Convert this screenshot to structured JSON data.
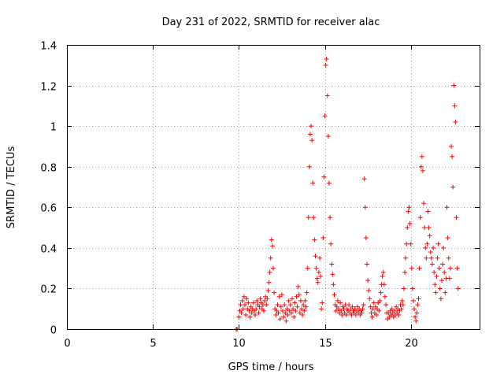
{
  "chart_data": {
    "type": "scatter",
    "title": "Day 231 of 2022, SRMTID for receiver alac",
    "xlabel": "GPS time / hours",
    "ylabel": "SRMTID / TECUs",
    "xlim": [
      0,
      24
    ],
    "ylim": [
      0,
      1.4
    ],
    "xticks": [
      0,
      5,
      10,
      15,
      20
    ],
    "xtick_labels": [
      "0",
      "5",
      "10",
      "15",
      "20"
    ],
    "yticks": [
      0,
      0.2,
      0.4,
      0.6,
      0.8,
      1.0,
      1.2,
      1.4
    ],
    "ytick_labels": [
      "0",
      "0.2",
      "0.4",
      "0.6",
      "0.8",
      "1",
      "1.2",
      "1.4"
    ],
    "grid": true,
    "marker": "+",
    "color": "#ff0000",
    "series": [
      {
        "name": "SRMTID",
        "points": [
          [
            9.85,
            0.0
          ],
          [
            9.9,
            0.0
          ],
          [
            10.0,
            0.06
          ],
          [
            10.05,
            0.09
          ],
          [
            10.1,
            0.12
          ],
          [
            10.15,
            0.08
          ],
          [
            10.2,
            0.14
          ],
          [
            10.25,
            0.1
          ],
          [
            10.3,
            0.16
          ],
          [
            10.35,
            0.12
          ],
          [
            10.4,
            0.07
          ],
          [
            10.45,
            0.15
          ],
          [
            10.5,
            0.1
          ],
          [
            10.55,
            0.13
          ],
          [
            10.6,
            0.09
          ],
          [
            10.65,
            0.06
          ],
          [
            10.7,
            0.11
          ],
          [
            10.75,
            0.08
          ],
          [
            10.8,
            0.1
          ],
          [
            10.85,
            0.13
          ],
          [
            10.9,
            0.09
          ],
          [
            10.95,
            0.07
          ],
          [
            11.0,
            0.1
          ],
          [
            11.05,
            0.14
          ],
          [
            11.1,
            0.12
          ],
          [
            11.15,
            0.08
          ],
          [
            11.2,
            0.11
          ],
          [
            11.25,
            0.15
          ],
          [
            11.3,
            0.13
          ],
          [
            11.35,
            0.1
          ],
          [
            11.4,
            0.12
          ],
          [
            11.45,
            0.09
          ],
          [
            11.5,
            0.14
          ],
          [
            11.55,
            0.16
          ],
          [
            11.6,
            0.12
          ],
          [
            11.65,
            0.15
          ],
          [
            11.7,
            0.19
          ],
          [
            11.75,
            0.23
          ],
          [
            11.8,
            0.28
          ],
          [
            11.85,
            0.35
          ],
          [
            11.9,
            0.44
          ],
          [
            11.95,
            0.41
          ],
          [
            12.0,
            0.3
          ],
          [
            12.05,
            0.18
          ],
          [
            12.1,
            0.1
          ],
          [
            12.15,
            0.07
          ],
          [
            12.2,
            0.09
          ],
          [
            12.25,
            0.12
          ],
          [
            12.3,
            0.08
          ],
          [
            12.35,
            0.16
          ],
          [
            12.4,
            0.05
          ],
          [
            12.45,
            0.11
          ],
          [
            12.5,
            0.17
          ],
          [
            12.55,
            0.09
          ],
          [
            12.6,
            0.06
          ],
          [
            12.65,
            0.12
          ],
          [
            12.7,
            0.08
          ],
          [
            12.75,
            0.04
          ],
          [
            12.8,
            0.1
          ],
          [
            12.85,
            0.07
          ],
          [
            12.9,
            0.14
          ],
          [
            12.95,
            0.09
          ],
          [
            13.0,
            0.12
          ],
          [
            13.05,
            0.08
          ],
          [
            13.1,
            0.15
          ],
          [
            13.15,
            0.1
          ],
          [
            13.2,
            0.06
          ],
          [
            13.25,
            0.13
          ],
          [
            13.3,
            0.09
          ],
          [
            13.35,
            0.16
          ],
          [
            13.4,
            0.11
          ],
          [
            13.45,
            0.21
          ],
          [
            13.5,
            0.17
          ],
          [
            13.55,
            0.08
          ],
          [
            13.6,
            0.14
          ],
          [
            13.65,
            0.1
          ],
          [
            13.7,
            0.07
          ],
          [
            13.75,
            0.12
          ],
          [
            13.8,
            0.09
          ],
          [
            13.85,
            0.14
          ],
          [
            13.9,
            0.11
          ],
          [
            13.95,
            0.18
          ],
          [
            14.0,
            0.3
          ],
          [
            14.05,
            0.55
          ],
          [
            14.1,
            0.8
          ],
          [
            14.15,
            0.96
          ],
          [
            14.2,
            1.0
          ],
          [
            14.25,
            0.93
          ],
          [
            14.3,
            0.72
          ],
          [
            14.35,
            0.55
          ],
          [
            14.4,
            0.44
          ],
          [
            14.45,
            0.36
          ],
          [
            14.5,
            0.3
          ],
          [
            14.55,
            0.25
          ],
          [
            14.6,
            0.23
          ],
          [
            14.65,
            0.28
          ],
          [
            14.7,
            0.35
          ],
          [
            14.75,
            0.26
          ],
          [
            14.8,
            0.1
          ],
          [
            14.85,
            0.13
          ],
          [
            14.9,
            0.45
          ],
          [
            14.95,
            0.75
          ],
          [
            15.0,
            1.05
          ],
          [
            15.05,
            1.3
          ],
          [
            15.1,
            1.33
          ],
          [
            15.15,
            1.15
          ],
          [
            15.2,
            0.95
          ],
          [
            15.25,
            0.72
          ],
          [
            15.3,
            0.55
          ],
          [
            15.35,
            0.42
          ],
          [
            15.4,
            0.32
          ],
          [
            15.45,
            0.27
          ],
          [
            15.5,
            0.22
          ],
          [
            15.55,
            0.17
          ],
          [
            15.6,
            0.12
          ],
          [
            15.65,
            0.09
          ],
          [
            15.7,
            0.11
          ],
          [
            15.75,
            0.14
          ],
          [
            15.8,
            0.1
          ],
          [
            15.85,
            0.08
          ],
          [
            15.9,
            0.13
          ],
          [
            15.95,
            0.09
          ],
          [
            16.0,
            0.07
          ],
          [
            16.05,
            0.11
          ],
          [
            16.1,
            0.1
          ],
          [
            16.15,
            0.08
          ],
          [
            16.2,
            0.12
          ],
          [
            16.25,
            0.07
          ],
          [
            16.3,
            0.1
          ],
          [
            16.35,
            0.09
          ],
          [
            16.4,
            0.12
          ],
          [
            16.45,
            0.08
          ],
          [
            16.5,
            0.1
          ],
          [
            16.55,
            0.07
          ],
          [
            16.6,
            0.11
          ],
          [
            16.65,
            0.09
          ],
          [
            16.7,
            0.08
          ],
          [
            16.75,
            0.1
          ],
          [
            16.8,
            0.07
          ],
          [
            16.85,
            0.09
          ],
          [
            16.9,
            0.11
          ],
          [
            16.95,
            0.08
          ],
          [
            17.0,
            0.1
          ],
          [
            17.05,
            0.07
          ],
          [
            17.1,
            0.09
          ],
          [
            17.15,
            0.08
          ],
          [
            17.2,
            0.1
          ],
          [
            17.25,
            0.12
          ],
          [
            17.3,
            0.74
          ],
          [
            17.35,
            0.6
          ],
          [
            17.4,
            0.45
          ],
          [
            17.45,
            0.32
          ],
          [
            17.5,
            0.24
          ],
          [
            17.55,
            0.19
          ],
          [
            17.6,
            0.15
          ],
          [
            17.65,
            0.11
          ],
          [
            17.7,
            0.08
          ],
          [
            17.75,
            0.06
          ],
          [
            17.8,
            0.1
          ],
          [
            17.85,
            0.13
          ],
          [
            17.9,
            0.08
          ],
          [
            17.95,
            0.11
          ],
          [
            18.0,
            0.07
          ],
          [
            18.05,
            0.1
          ],
          [
            18.1,
            0.13
          ],
          [
            18.15,
            0.09
          ],
          [
            18.2,
            0.14
          ],
          [
            18.25,
            0.18
          ],
          [
            18.3,
            0.22
          ],
          [
            18.35,
            0.26
          ],
          [
            18.4,
            0.28
          ],
          [
            18.45,
            0.22
          ],
          [
            18.5,
            0.16
          ],
          [
            18.55,
            0.12
          ],
          [
            18.6,
            0.08
          ],
          [
            18.65,
            0.05
          ],
          [
            18.7,
            0.08
          ],
          [
            18.75,
            0.06
          ],
          [
            18.8,
            0.09
          ],
          [
            18.85,
            0.07
          ],
          [
            18.9,
            0.1
          ],
          [
            18.95,
            0.08
          ],
          [
            19.0,
            0.06
          ],
          [
            19.05,
            0.09
          ],
          [
            19.1,
            0.07
          ],
          [
            19.15,
            0.11
          ],
          [
            19.2,
            0.08
          ],
          [
            19.25,
            0.1
          ],
          [
            19.3,
            0.07
          ],
          [
            19.35,
            0.09
          ],
          [
            19.4,
            0.12
          ],
          [
            19.45,
            0.1
          ],
          [
            19.5,
            0.14
          ],
          [
            19.55,
            0.12
          ],
          [
            19.6,
            0.2
          ],
          [
            19.65,
            0.28
          ],
          [
            19.7,
            0.35
          ],
          [
            19.75,
            0.42
          ],
          [
            19.8,
            0.5
          ],
          [
            19.85,
            0.58
          ],
          [
            19.9,
            0.6
          ],
          [
            19.95,
            0.52
          ],
          [
            20.0,
            0.42
          ],
          [
            20.05,
            0.3
          ],
          [
            20.1,
            0.2
          ],
          [
            20.15,
            0.14
          ],
          [
            20.2,
            0.1
          ],
          [
            20.25,
            0.06
          ],
          [
            20.3,
            0.04
          ],
          [
            20.35,
            0.08
          ],
          [
            20.4,
            0.12
          ],
          [
            20.45,
            0.15
          ],
          [
            20.5,
            0.3
          ],
          [
            20.55,
            0.55
          ],
          [
            20.6,
            0.8
          ],
          [
            20.65,
            0.85
          ],
          [
            20.7,
            0.78
          ],
          [
            20.75,
            0.62
          ],
          [
            20.8,
            0.5
          ],
          [
            20.85,
            0.4
          ],
          [
            20.9,
            0.35
          ],
          [
            20.95,
            0.42
          ],
          [
            21.0,
            0.58
          ],
          [
            21.05,
            0.5
          ],
          [
            21.1,
            0.46
          ],
          [
            21.15,
            0.38
          ],
          [
            21.2,
            0.35
          ],
          [
            21.25,
            0.32
          ],
          [
            21.3,
            0.4
          ],
          [
            21.35,
            0.28
          ],
          [
            21.4,
            0.22
          ],
          [
            21.45,
            0.18
          ],
          [
            21.5,
            0.26
          ],
          [
            21.55,
            0.35
          ],
          [
            21.6,
            0.42
          ],
          [
            21.65,
            0.3
          ],
          [
            21.7,
            0.2
          ],
          [
            21.75,
            0.15
          ],
          [
            21.8,
            0.24
          ],
          [
            21.85,
            0.32
          ],
          [
            21.9,
            0.4
          ],
          [
            21.95,
            0.28
          ],
          [
            22.0,
            0.18
          ],
          [
            22.05,
            0.25
          ],
          [
            22.1,
            0.6
          ],
          [
            22.15,
            0.45
          ],
          [
            22.2,
            0.35
          ],
          [
            22.25,
            0.25
          ],
          [
            22.3,
            0.3
          ],
          [
            22.35,
            0.9
          ],
          [
            22.4,
            0.85
          ],
          [
            22.45,
            0.7
          ],
          [
            22.5,
            1.2
          ],
          [
            22.55,
            1.1
          ],
          [
            22.6,
            1.02
          ],
          [
            22.65,
            0.55
          ],
          [
            22.7,
            0.3
          ],
          [
            22.75,
            0.2
          ]
        ]
      }
    ]
  }
}
